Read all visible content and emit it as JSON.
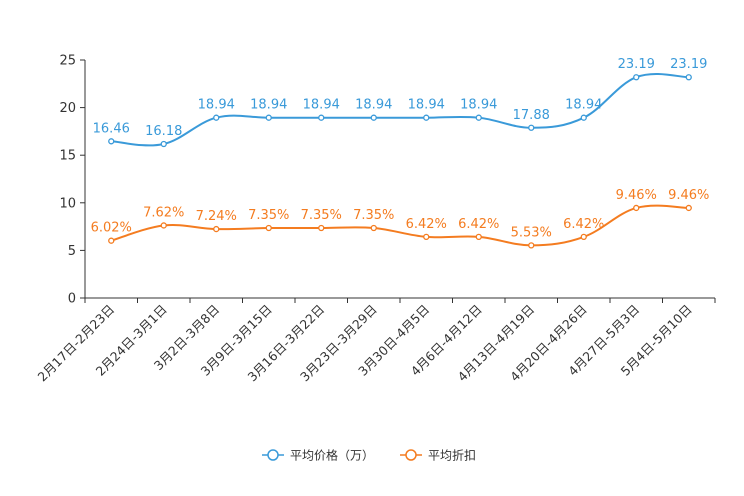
{
  "chart_data": {
    "type": "line",
    "title": "",
    "xlabel": "",
    "ylabel": "",
    "ylim": [
      0,
      25
    ],
    "yticks": [
      0,
      5,
      10,
      15,
      20,
      25
    ],
    "categories": [
      "2月17日-2月23日",
      "2月24日-3月1日",
      "3月2日-3月8日",
      "3月9日-3月15日",
      "3月16日-3月22日",
      "3月23日-3月29日",
      "3月30日-4月5日",
      "4月6日-4月12日",
      "4月13日-4月19日",
      "4月20日-4月26日",
      "4月27日-5月3日",
      "5月4日-5月10日"
    ],
    "series": [
      {
        "name": "平均价格（万）",
        "color": "#3a9ad9",
        "values": [
          16.46,
          16.18,
          18.94,
          18.94,
          18.94,
          18.94,
          18.94,
          18.94,
          17.88,
          18.94,
          23.19,
          23.19
        ],
        "labels": [
          "16.46",
          "16.18",
          "18.94",
          "18.94",
          "18.94",
          "18.94",
          "18.94",
          "18.94",
          "17.88",
          "18.94",
          "23.19",
          "23.19"
        ]
      },
      {
        "name": "平均折扣",
        "color": "#f47c20",
        "values": [
          6.02,
          7.62,
          7.24,
          7.35,
          7.35,
          7.35,
          6.42,
          6.42,
          5.53,
          6.42,
          9.46,
          9.46
        ],
        "labels": [
          "6.02%",
          "7.62%",
          "7.24%",
          "7.35%",
          "7.35%",
          "7.35%",
          "6.42%",
          "6.42%",
          "5.53%",
          "6.42%",
          "9.46%",
          "9.46%"
        ]
      }
    ],
    "legend_position": "bottom",
    "grid": false
  }
}
